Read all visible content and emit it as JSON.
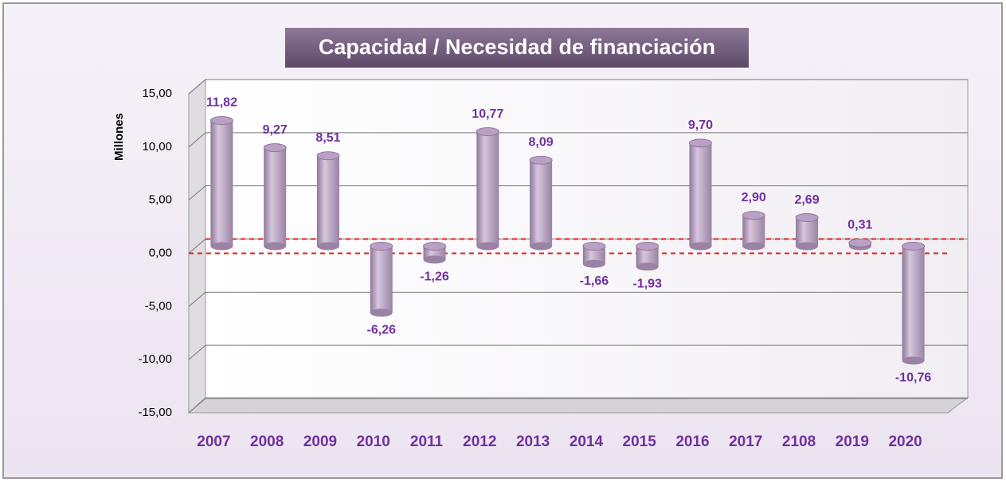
{
  "chart_data": {
    "type": "bar",
    "title": "Capacidad / Necesidad de financiación",
    "y_label": "Millones",
    "categories": [
      "2007",
      "2008",
      "2009",
      "2010",
      "2011",
      "2012",
      "2013",
      "2014",
      "2015",
      "2016",
      "2017",
      "2108",
      "2019",
      "2020"
    ],
    "values": [
      11.82,
      9.27,
      8.51,
      -6.26,
      -1.26,
      10.77,
      8.09,
      -1.66,
      -1.93,
      9.7,
      2.9,
      2.69,
      0.31,
      -10.76
    ],
    "value_labels": [
      "11,82",
      "9,27",
      "8,51",
      "-6,26",
      "-1,26",
      "10,77",
      "8,09",
      "-1,66",
      "-1,93",
      "9,70",
      "2,90",
      "2,69",
      "0,31",
      "-10,76"
    ],
    "color": "#b9a0c4",
    "ylim": [
      -15,
      15
    ],
    "yticks": [
      {
        "value": -15,
        "label": "-15,00"
      },
      {
        "value": -10,
        "label": "-10,00"
      },
      {
        "value": -5,
        "label": "-5,00"
      },
      {
        "value": 0,
        "label": "0,00"
      },
      {
        "value": 5,
        "label": "5,00"
      },
      {
        "value": 10,
        "label": "10,00"
      },
      {
        "value": 15,
        "label": "15,00"
      }
    ],
    "grid": true
  }
}
